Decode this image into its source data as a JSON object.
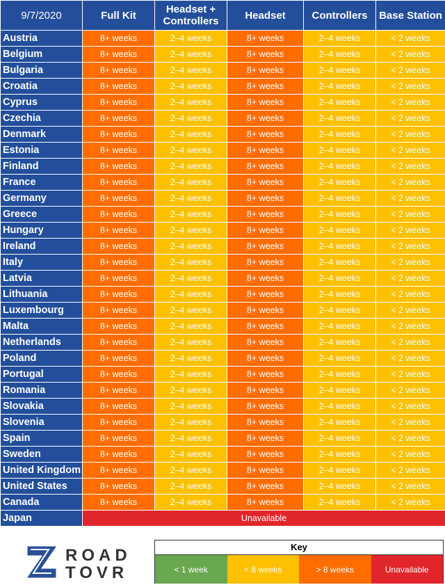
{
  "table": {
    "columns": [
      "9/7/2020",
      "Full Kit",
      "Headset + Controllers",
      "Headset",
      "Controllers",
      "Base Station"
    ],
    "rows": [
      [
        "Austria",
        "8+ weeks",
        "2–4 weeks",
        "8+ weeks",
        "2–4 weeks",
        "< 2 weeks"
      ],
      [
        "Belgium",
        "8+ weeks",
        "2–4 weeks",
        "8+ weeks",
        "2–4 weeks",
        "< 2 weeks"
      ],
      [
        "Bulgaria",
        "8+ weeks",
        "2–4 weeks",
        "8+ weeks",
        "2–4 weeks",
        "< 2 weeks"
      ],
      [
        "Croatia",
        "8+ weeks",
        "2–4 weeks",
        "8+ weeks",
        "2–4 weeks",
        "< 2 weeks"
      ],
      [
        "Cyprus",
        "8+ weeks",
        "2–4 weeks",
        "8+ weeks",
        "2–4 weeks",
        "< 2 weeks"
      ],
      [
        "Czechia",
        "8+ weeks",
        "2–4 weeks",
        "8+ weeks",
        "2–4 weeks",
        "< 2 weeks"
      ],
      [
        "Denmark",
        "8+ weeks",
        "2–4 weeks",
        "8+ weeks",
        "2–4 weeks",
        "< 2 weeks"
      ],
      [
        "Estonia",
        "8+ weeks",
        "2–4 weeks",
        "8+ weeks",
        "2–4 weeks",
        "< 2 weeks"
      ],
      [
        "Finland",
        "8+ weeks",
        "2–4 weeks",
        "8+ weeks",
        "2–4 weeks",
        "< 2 weeks"
      ],
      [
        "France",
        "8+ weeks",
        "2–4 weeks",
        "8+ weeks",
        "2–4 weeks",
        "< 2 weeks"
      ],
      [
        "Germany",
        "8+ weeks",
        "2–4 weeks",
        "8+ weeks",
        "2–4 weeks",
        "< 2 weeks"
      ],
      [
        "Greece",
        "8+ weeks",
        "2–4 weeks",
        "8+ weeks",
        "2–4 weeks",
        "< 2 weeks"
      ],
      [
        "Hungary",
        "8+ weeks",
        "2–4 weeks",
        "8+ weeks",
        "2–4 weeks",
        "< 2 weeks"
      ],
      [
        "Ireland",
        "8+ weeks",
        "2–4 weeks",
        "8+ weeks",
        "2–4 weeks",
        "< 2 weeks"
      ],
      [
        "Italy",
        "8+ weeks",
        "2–4 weeks",
        "8+ weeks",
        "2–4 weeks",
        "< 2 weeks"
      ],
      [
        "Latvia",
        "8+ weeks",
        "2–4 weeks",
        "8+ weeks",
        "2–4 weeks",
        "< 2 weeks"
      ],
      [
        "Lithuania",
        "8+ weeks",
        "2–4 weeks",
        "8+ weeks",
        "2–4 weeks",
        "< 2 weeks"
      ],
      [
        "Luxembourg",
        "8+ weeks",
        "2–4 weeks",
        "8+ weeks",
        "2–4 weeks",
        "< 2 weeks"
      ],
      [
        "Malta",
        "8+ weeks",
        "2–4 weeks",
        "8+ weeks",
        "2–4 weeks",
        "< 2 weeks"
      ],
      [
        "Netherlands",
        "8+ weeks",
        "2–4 weeks",
        "8+ weeks",
        "2–4 weeks",
        "< 2 weeks"
      ],
      [
        "Poland",
        "8+ weeks",
        "2–4 weeks",
        "8+ weeks",
        "2–4 weeks",
        "< 2 weeks"
      ],
      [
        "Portugal",
        "8+ weeks",
        "2–4 weeks",
        "8+ weeks",
        "2–4 weeks",
        "< 2 weeks"
      ],
      [
        "Romania",
        "8+ weeks",
        "2–4 weeks",
        "8+ weeks",
        "2–4 weeks",
        "< 2 weeks"
      ],
      [
        "Slovakia",
        "8+ weeks",
        "2–4 weeks",
        "8+ weeks",
        "2–4 weeks",
        "< 2 weeks"
      ],
      [
        "Slovenia",
        "8+ weeks",
        "2–4 weeks",
        "8+ weeks",
        "2–4 weeks",
        "< 2 weeks"
      ],
      [
        "Spain",
        "8+ weeks",
        "2–4 weeks",
        "8+ weeks",
        "2–4 weeks",
        "< 2 weeks"
      ],
      [
        "Sweden",
        "8+ weeks",
        "2–4 weeks",
        "8+ weeks",
        "2–4 weeks",
        "< 2 weeks"
      ],
      [
        "United Kingdom",
        "8+ weeks",
        "2–4 weeks",
        "8+ weeks",
        "2–4 weeks",
        "< 2 weeks"
      ],
      [
        "United States",
        "8+ weeks",
        "2–4 weeks",
        "8+ weeks",
        "2–4 weeks",
        "< 2 weeks"
      ],
      [
        "Canada",
        "8+ weeks",
        "2–4 weeks",
        "8+ weeks",
        "2–4 weeks",
        "< 2 weeks"
      ],
      [
        "Japan",
        "Unavailable"
      ]
    ]
  },
  "logo": {
    "line1": "ROAD",
    "line2": "TOVR"
  },
  "key": {
    "title": "Key",
    "items": [
      "< 1 week",
      "< 8 weeks",
      "> 8 weeks",
      "Unavailable"
    ]
  }
}
